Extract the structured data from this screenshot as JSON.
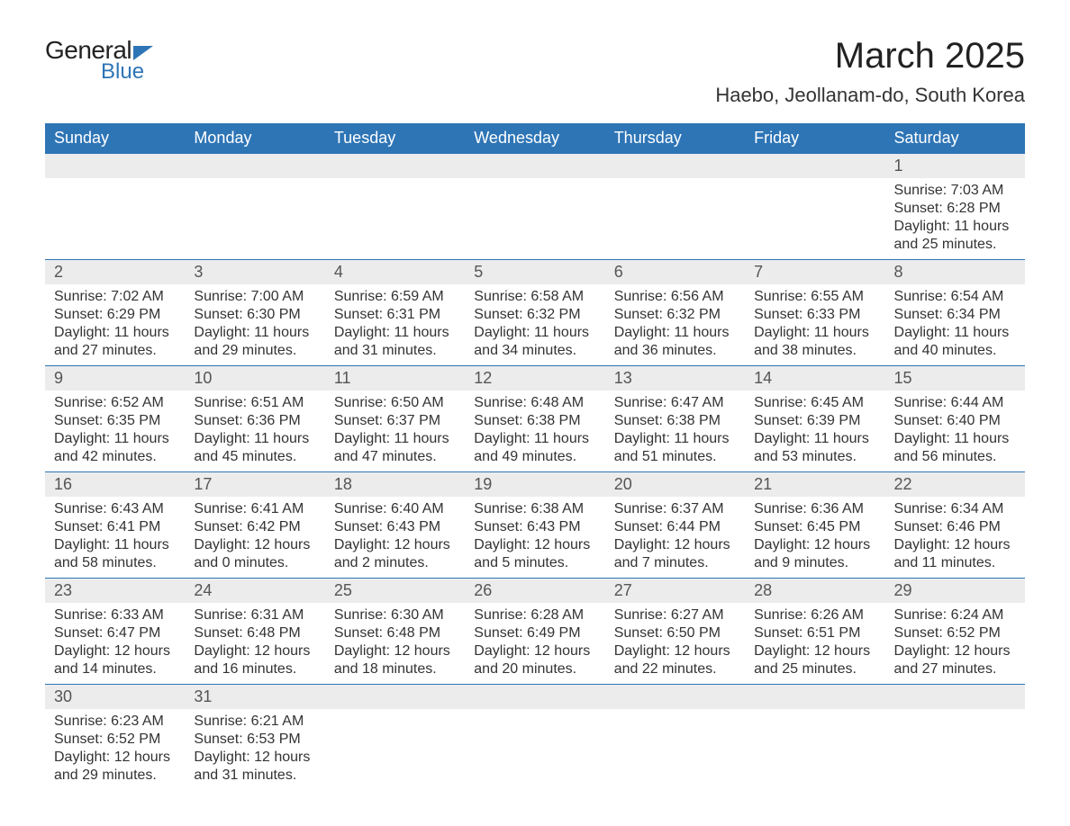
{
  "brand": {
    "general": "General",
    "blue": "Blue",
    "accent_color": "#2e75b6"
  },
  "title": {
    "month": "March 2025",
    "location": "Haebo, Jeollanam-do, South Korea"
  },
  "weekdays": [
    "Sunday",
    "Monday",
    "Tuesday",
    "Wednesday",
    "Thursday",
    "Friday",
    "Saturday"
  ],
  "colors": {
    "header_bg": "#2e75b6",
    "header_text": "#ffffff",
    "daynum_bg": "#ececec",
    "border": "#2e75b6",
    "body_text": "#333333"
  },
  "weeks": [
    [
      null,
      null,
      null,
      null,
      null,
      null,
      {
        "n": "1",
        "sunrise": "Sunrise: 7:03 AM",
        "sunset": "Sunset: 6:28 PM",
        "daylight": "Daylight: 11 hours and 25 minutes."
      }
    ],
    [
      {
        "n": "2",
        "sunrise": "Sunrise: 7:02 AM",
        "sunset": "Sunset: 6:29 PM",
        "daylight": "Daylight: 11 hours and 27 minutes."
      },
      {
        "n": "3",
        "sunrise": "Sunrise: 7:00 AM",
        "sunset": "Sunset: 6:30 PM",
        "daylight": "Daylight: 11 hours and 29 minutes."
      },
      {
        "n": "4",
        "sunrise": "Sunrise: 6:59 AM",
        "sunset": "Sunset: 6:31 PM",
        "daylight": "Daylight: 11 hours and 31 minutes."
      },
      {
        "n": "5",
        "sunrise": "Sunrise: 6:58 AM",
        "sunset": "Sunset: 6:32 PM",
        "daylight": "Daylight: 11 hours and 34 minutes."
      },
      {
        "n": "6",
        "sunrise": "Sunrise: 6:56 AM",
        "sunset": "Sunset: 6:32 PM",
        "daylight": "Daylight: 11 hours and 36 minutes."
      },
      {
        "n": "7",
        "sunrise": "Sunrise: 6:55 AM",
        "sunset": "Sunset: 6:33 PM",
        "daylight": "Daylight: 11 hours and 38 minutes."
      },
      {
        "n": "8",
        "sunrise": "Sunrise: 6:54 AM",
        "sunset": "Sunset: 6:34 PM",
        "daylight": "Daylight: 11 hours and 40 minutes."
      }
    ],
    [
      {
        "n": "9",
        "sunrise": "Sunrise: 6:52 AM",
        "sunset": "Sunset: 6:35 PM",
        "daylight": "Daylight: 11 hours and 42 minutes."
      },
      {
        "n": "10",
        "sunrise": "Sunrise: 6:51 AM",
        "sunset": "Sunset: 6:36 PM",
        "daylight": "Daylight: 11 hours and 45 minutes."
      },
      {
        "n": "11",
        "sunrise": "Sunrise: 6:50 AM",
        "sunset": "Sunset: 6:37 PM",
        "daylight": "Daylight: 11 hours and 47 minutes."
      },
      {
        "n": "12",
        "sunrise": "Sunrise: 6:48 AM",
        "sunset": "Sunset: 6:38 PM",
        "daylight": "Daylight: 11 hours and 49 minutes."
      },
      {
        "n": "13",
        "sunrise": "Sunrise: 6:47 AM",
        "sunset": "Sunset: 6:38 PM",
        "daylight": "Daylight: 11 hours and 51 minutes."
      },
      {
        "n": "14",
        "sunrise": "Sunrise: 6:45 AM",
        "sunset": "Sunset: 6:39 PM",
        "daylight": "Daylight: 11 hours and 53 minutes."
      },
      {
        "n": "15",
        "sunrise": "Sunrise: 6:44 AM",
        "sunset": "Sunset: 6:40 PM",
        "daylight": "Daylight: 11 hours and 56 minutes."
      }
    ],
    [
      {
        "n": "16",
        "sunrise": "Sunrise: 6:43 AM",
        "sunset": "Sunset: 6:41 PM",
        "daylight": "Daylight: 11 hours and 58 minutes."
      },
      {
        "n": "17",
        "sunrise": "Sunrise: 6:41 AM",
        "sunset": "Sunset: 6:42 PM",
        "daylight": "Daylight: 12 hours and 0 minutes."
      },
      {
        "n": "18",
        "sunrise": "Sunrise: 6:40 AM",
        "sunset": "Sunset: 6:43 PM",
        "daylight": "Daylight: 12 hours and 2 minutes."
      },
      {
        "n": "19",
        "sunrise": "Sunrise: 6:38 AM",
        "sunset": "Sunset: 6:43 PM",
        "daylight": "Daylight: 12 hours and 5 minutes."
      },
      {
        "n": "20",
        "sunrise": "Sunrise: 6:37 AM",
        "sunset": "Sunset: 6:44 PM",
        "daylight": "Daylight: 12 hours and 7 minutes."
      },
      {
        "n": "21",
        "sunrise": "Sunrise: 6:36 AM",
        "sunset": "Sunset: 6:45 PM",
        "daylight": "Daylight: 12 hours and 9 minutes."
      },
      {
        "n": "22",
        "sunrise": "Sunrise: 6:34 AM",
        "sunset": "Sunset: 6:46 PM",
        "daylight": "Daylight: 12 hours and 11 minutes."
      }
    ],
    [
      {
        "n": "23",
        "sunrise": "Sunrise: 6:33 AM",
        "sunset": "Sunset: 6:47 PM",
        "daylight": "Daylight: 12 hours and 14 minutes."
      },
      {
        "n": "24",
        "sunrise": "Sunrise: 6:31 AM",
        "sunset": "Sunset: 6:48 PM",
        "daylight": "Daylight: 12 hours and 16 minutes."
      },
      {
        "n": "25",
        "sunrise": "Sunrise: 6:30 AM",
        "sunset": "Sunset: 6:48 PM",
        "daylight": "Daylight: 12 hours and 18 minutes."
      },
      {
        "n": "26",
        "sunrise": "Sunrise: 6:28 AM",
        "sunset": "Sunset: 6:49 PM",
        "daylight": "Daylight: 12 hours and 20 minutes."
      },
      {
        "n": "27",
        "sunrise": "Sunrise: 6:27 AM",
        "sunset": "Sunset: 6:50 PM",
        "daylight": "Daylight: 12 hours and 22 minutes."
      },
      {
        "n": "28",
        "sunrise": "Sunrise: 6:26 AM",
        "sunset": "Sunset: 6:51 PM",
        "daylight": "Daylight: 12 hours and 25 minutes."
      },
      {
        "n": "29",
        "sunrise": "Sunrise: 6:24 AM",
        "sunset": "Sunset: 6:52 PM",
        "daylight": "Daylight: 12 hours and 27 minutes."
      }
    ],
    [
      {
        "n": "30",
        "sunrise": "Sunrise: 6:23 AM",
        "sunset": "Sunset: 6:52 PM",
        "daylight": "Daylight: 12 hours and 29 minutes."
      },
      {
        "n": "31",
        "sunrise": "Sunrise: 6:21 AM",
        "sunset": "Sunset: 6:53 PM",
        "daylight": "Daylight: 12 hours and 31 minutes."
      },
      null,
      null,
      null,
      null,
      null
    ]
  ]
}
